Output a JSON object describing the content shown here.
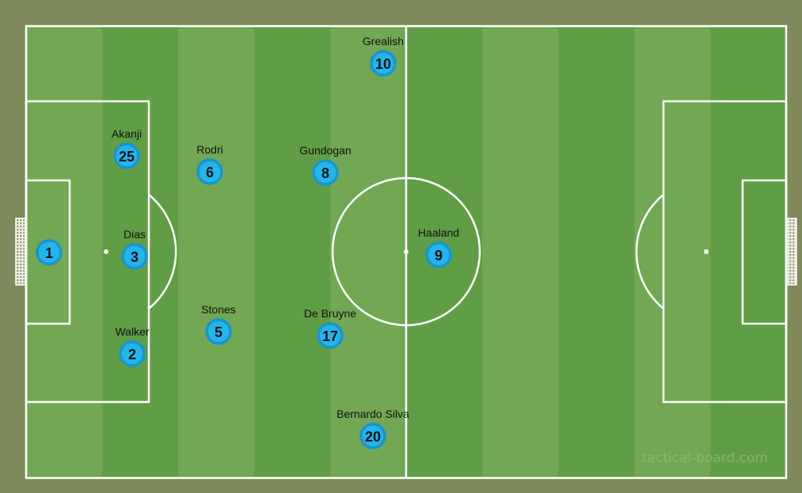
{
  "colors": {
    "background": "#7f8a5a",
    "stripe_light": "#72a853",
    "stripe_dark": "#5f9e45",
    "lines": "#ffffff",
    "player_fill": "#22b5ee",
    "player_ring": "#1a94cc"
  },
  "watermark": "tactical-board.com",
  "players": [
    {
      "name": "",
      "number": "1"
    },
    {
      "name": "Akanji",
      "number": "25"
    },
    {
      "name": "Dias",
      "number": "3"
    },
    {
      "name": "Walker",
      "number": "2"
    },
    {
      "name": "Rodri",
      "number": "6"
    },
    {
      "name": "Stones",
      "number": "5"
    },
    {
      "name": "Gundogan",
      "number": "8"
    },
    {
      "name": "De Bruyne",
      "number": "17"
    },
    {
      "name": "Grealish",
      "number": "10"
    },
    {
      "name": "Bernardo Silva",
      "number": "20"
    },
    {
      "name": "Haaland",
      "number": "9"
    }
  ]
}
